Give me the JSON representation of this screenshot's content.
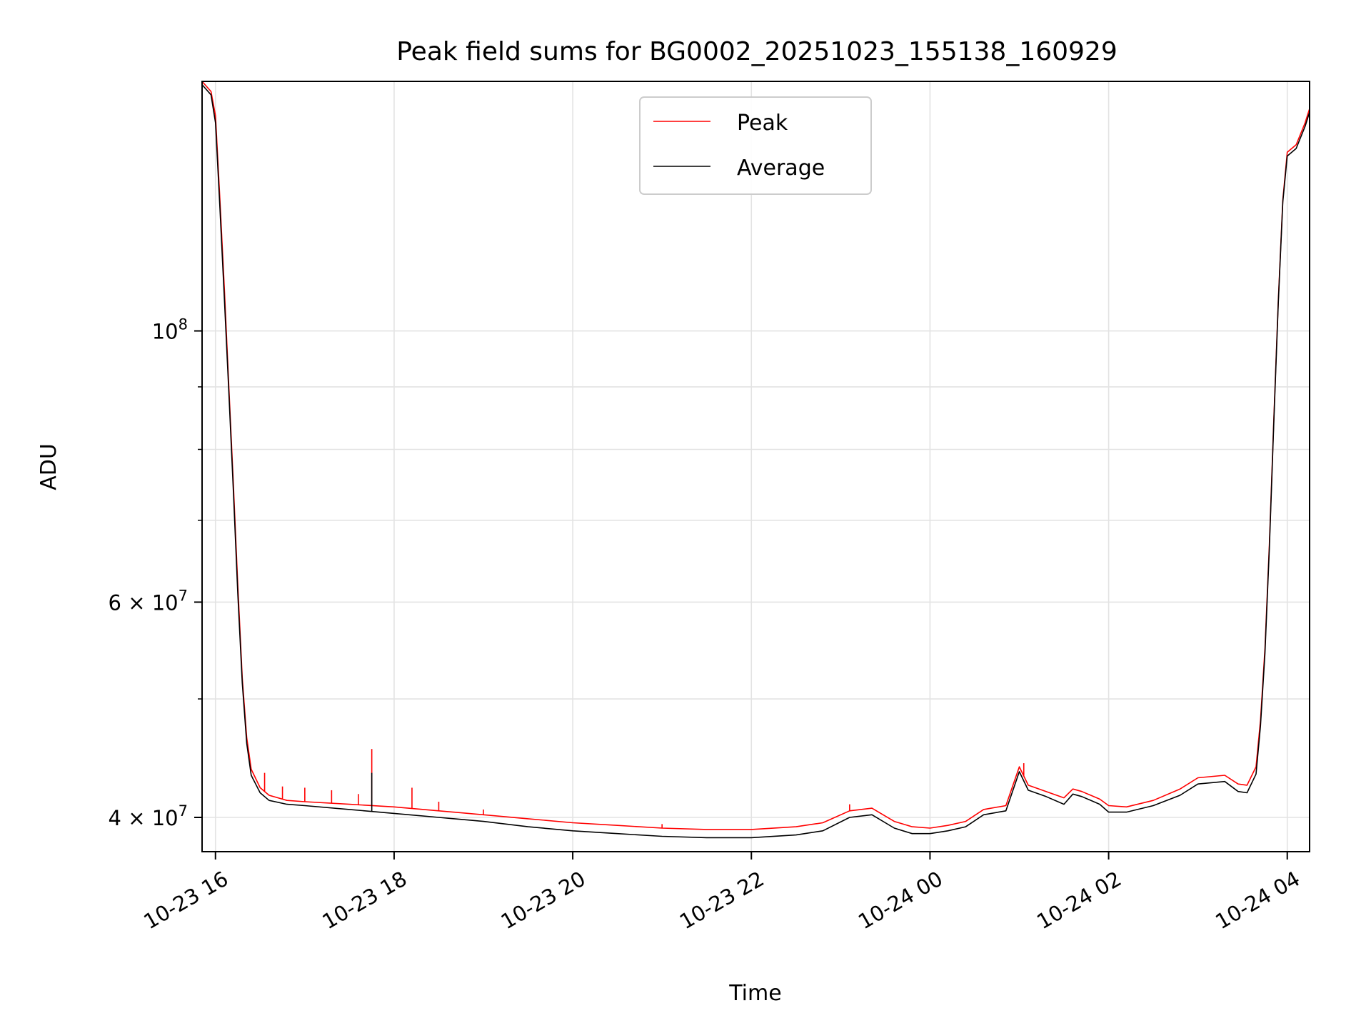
{
  "chart_data": {
    "type": "line",
    "title": "Peak field sums for BG0002_20251023_155138_160929",
    "xlabel": "Time",
    "ylabel": "ADU",
    "yscale": "log",
    "grid": true,
    "legend_position": "top-center",
    "x_unit": "hours since 2025-10-23 00:00",
    "xlim": [
      15.85,
      28.25
    ],
    "ylim": [
      37500000,
      160000000
    ],
    "x_ticks": [
      {
        "value": 16,
        "label": "10-23 16"
      },
      {
        "value": 18,
        "label": "10-23 18"
      },
      {
        "value": 20,
        "label": "10-23 20"
      },
      {
        "value": 22,
        "label": "10-23 22"
      },
      {
        "value": 24,
        "label": "10-24 00"
      },
      {
        "value": 26,
        "label": "10-24 02"
      },
      {
        "value": 28,
        "label": "10-24 04"
      }
    ],
    "y_ticks": [
      {
        "value": 40000000,
        "label": "4 × 10",
        "exp": "7"
      },
      {
        "value": 60000000,
        "label": "6 × 10",
        "exp": "7"
      },
      {
        "value": 100000000,
        "label": "10",
        "exp": "8"
      }
    ],
    "y_minor_ticks": [
      50000000,
      70000000,
      80000000,
      90000000
    ],
    "series": [
      {
        "name": "Peak",
        "color": "#ff0000",
        "points": [
          [
            15.85,
            160000000
          ],
          [
            15.95,
            157000000
          ],
          [
            16.0,
            150000000
          ],
          [
            16.05,
            128000000
          ],
          [
            16.1,
            108000000
          ],
          [
            16.15,
            90000000
          ],
          [
            16.2,
            75000000
          ],
          [
            16.25,
            62000000
          ],
          [
            16.3,
            52000000
          ],
          [
            16.35,
            46500000
          ],
          [
            16.4,
            43800000
          ],
          [
            16.5,
            42300000
          ],
          [
            16.6,
            41700000
          ],
          [
            16.8,
            41300000
          ],
          [
            17.0,
            41200000
          ],
          [
            17.5,
            41000000
          ],
          [
            18.0,
            40800000
          ],
          [
            18.5,
            40500000
          ],
          [
            19.0,
            40200000
          ],
          [
            19.5,
            39900000
          ],
          [
            20.0,
            39600000
          ],
          [
            20.5,
            39400000
          ],
          [
            21.0,
            39200000
          ],
          [
            21.5,
            39100000
          ],
          [
            22.0,
            39100000
          ],
          [
            22.5,
            39300000
          ],
          [
            22.8,
            39600000
          ],
          [
            23.1,
            40500000
          ],
          [
            23.35,
            40700000
          ],
          [
            23.6,
            39700000
          ],
          [
            23.8,
            39300000
          ],
          [
            24.0,
            39200000
          ],
          [
            24.2,
            39400000
          ],
          [
            24.4,
            39700000
          ],
          [
            24.6,
            40600000
          ],
          [
            24.85,
            40900000
          ],
          [
            25.0,
            44000000
          ],
          [
            25.1,
            42500000
          ],
          [
            25.3,
            42000000
          ],
          [
            25.5,
            41500000
          ],
          [
            25.6,
            42200000
          ],
          [
            25.7,
            42000000
          ],
          [
            25.9,
            41400000
          ],
          [
            26.0,
            40900000
          ],
          [
            26.2,
            40800000
          ],
          [
            26.5,
            41300000
          ],
          [
            26.8,
            42200000
          ],
          [
            27.0,
            43100000
          ],
          [
            27.3,
            43300000
          ],
          [
            27.45,
            42600000
          ],
          [
            27.55,
            42500000
          ],
          [
            27.65,
            44000000
          ],
          [
            27.7,
            48000000
          ],
          [
            27.75,
            55000000
          ],
          [
            27.8,
            67000000
          ],
          [
            27.85,
            85000000
          ],
          [
            27.9,
            106000000
          ],
          [
            27.95,
            128000000
          ],
          [
            28.0,
            140000000
          ],
          [
            28.1,
            142000000
          ],
          [
            28.2,
            148000000
          ],
          [
            28.25,
            152000000
          ]
        ],
        "spikes": [
          [
            16.55,
            43500000
          ],
          [
            16.75,
            42400000
          ],
          [
            17.0,
            42300000
          ],
          [
            17.3,
            42100000
          ],
          [
            17.6,
            41800000
          ],
          [
            17.75,
            45500000
          ],
          [
            18.2,
            42300000
          ],
          [
            18.5,
            41200000
          ],
          [
            19.0,
            40600000
          ],
          [
            21.0,
            39500000
          ],
          [
            23.1,
            41000000
          ],
          [
            25.05,
            44300000
          ]
        ]
      },
      {
        "name": "Average",
        "color": "#000000",
        "points": [
          [
            15.85,
            159000000
          ],
          [
            15.95,
            156000000
          ],
          [
            16.0,
            148000000
          ],
          [
            16.05,
            126000000
          ],
          [
            16.1,
            106000000
          ],
          [
            16.15,
            89000000
          ],
          [
            16.2,
            74000000
          ],
          [
            16.25,
            61000000
          ],
          [
            16.3,
            51500000
          ],
          [
            16.35,
            46000000
          ],
          [
            16.4,
            43300000
          ],
          [
            16.5,
            41900000
          ],
          [
            16.6,
            41300000
          ],
          [
            16.8,
            41000000
          ],
          [
            17.0,
            40900000
          ],
          [
            17.5,
            40600000
          ],
          [
            18.0,
            40300000
          ],
          [
            18.5,
            40000000
          ],
          [
            19.0,
            39700000
          ],
          [
            19.5,
            39300000
          ],
          [
            20.0,
            39000000
          ],
          [
            20.5,
            38800000
          ],
          [
            21.0,
            38600000
          ],
          [
            21.5,
            38500000
          ],
          [
            22.0,
            38500000
          ],
          [
            22.5,
            38700000
          ],
          [
            22.8,
            39000000
          ],
          [
            23.1,
            40000000
          ],
          [
            23.35,
            40200000
          ],
          [
            23.6,
            39200000
          ],
          [
            23.8,
            38800000
          ],
          [
            24.0,
            38800000
          ],
          [
            24.2,
            39000000
          ],
          [
            24.4,
            39300000
          ],
          [
            24.6,
            40200000
          ],
          [
            24.85,
            40500000
          ],
          [
            25.0,
            43600000
          ],
          [
            25.1,
            42100000
          ],
          [
            25.3,
            41600000
          ],
          [
            25.5,
            41000000
          ],
          [
            25.6,
            41800000
          ],
          [
            25.7,
            41600000
          ],
          [
            25.9,
            41000000
          ],
          [
            26.0,
            40400000
          ],
          [
            26.2,
            40400000
          ],
          [
            26.5,
            40900000
          ],
          [
            26.8,
            41700000
          ],
          [
            27.0,
            42600000
          ],
          [
            27.3,
            42800000
          ],
          [
            27.45,
            42000000
          ],
          [
            27.55,
            41900000
          ],
          [
            27.65,
            43400000
          ],
          [
            27.7,
            47500000
          ],
          [
            27.75,
            54500000
          ],
          [
            27.8,
            66500000
          ],
          [
            27.85,
            84500000
          ],
          [
            27.9,
            105500000
          ],
          [
            27.95,
            127500000
          ],
          [
            28.0,
            139000000
          ],
          [
            28.1,
            141000000
          ],
          [
            28.2,
            147000000
          ],
          [
            28.25,
            151000000
          ]
        ],
        "spikes": [
          [
            17.75,
            43500000
          ]
        ]
      }
    ]
  }
}
